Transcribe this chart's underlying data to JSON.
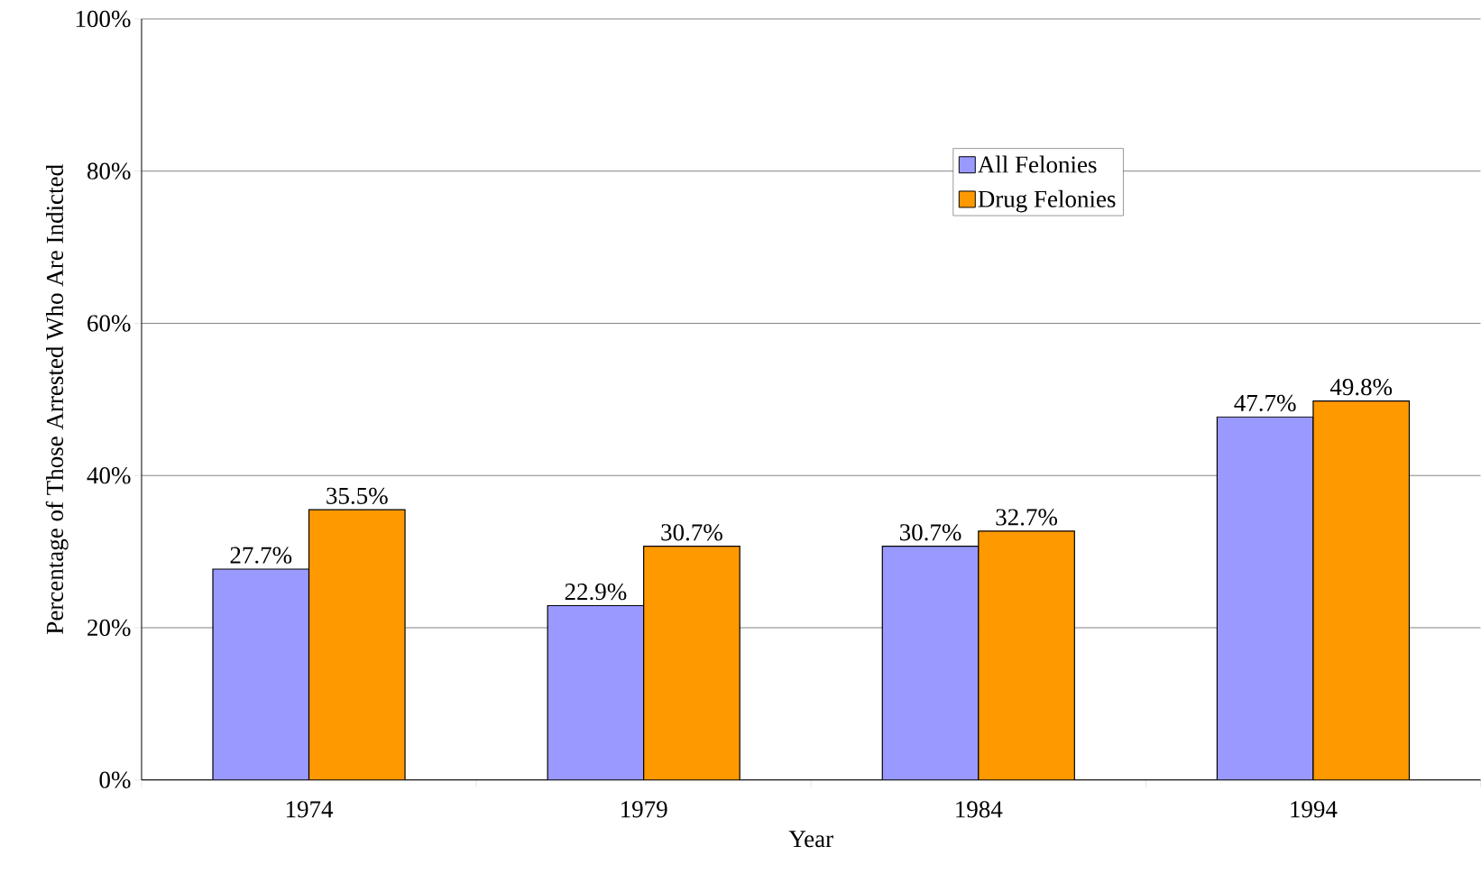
{
  "chart_data": {
    "type": "bar",
    "xlabel": "Year",
    "ylabel": "Percentage of Those Arrested Who Are Indicted",
    "categories": [
      "1974",
      "1979",
      "1984",
      "1994"
    ],
    "series": [
      {
        "name": "All Felonies",
        "color": "#9999ff",
        "values": [
          27.7,
          22.9,
          30.7,
          47.7
        ],
        "value_labels": [
          "27.7%",
          "22.9%",
          "30.7%",
          "47.7%"
        ]
      },
      {
        "name": "Drug Felonies",
        "color": "#ff9900",
        "values": [
          35.5,
          30.7,
          32.7,
          49.8
        ],
        "value_labels": [
          "35.5%",
          "30.7%",
          "32.7%",
          "49.8%"
        ]
      }
    ],
    "ylim": [
      0,
      100
    ],
    "yticks": [
      {
        "value": 0,
        "label": "0%"
      },
      {
        "value": 20,
        "label": "20%"
      },
      {
        "value": 40,
        "label": "40%"
      },
      {
        "value": 60,
        "label": "60%"
      },
      {
        "value": 80,
        "label": "80%"
      },
      {
        "value": 100,
        "label": "100%"
      }
    ],
    "grid": "y",
    "legend": "top right"
  }
}
